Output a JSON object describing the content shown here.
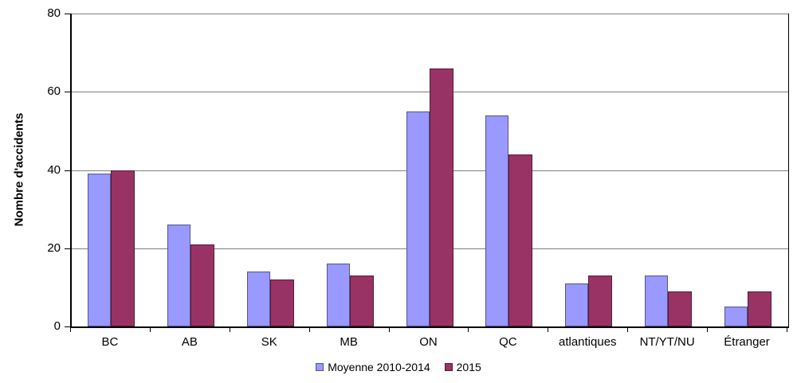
{
  "chart_data": {
    "type": "bar",
    "title": "",
    "xlabel": "",
    "ylabel": "Nombre d'accidents",
    "ylim": [
      0,
      80
    ],
    "yticks": [
      0,
      20,
      40,
      60,
      80
    ],
    "grid": true,
    "legend_position": "bottom",
    "categories": [
      "BC",
      "AB",
      "SK",
      "MB",
      "ON",
      "QC",
      "atlantiques",
      "NT/YT/NU",
      "Étranger"
    ],
    "series": [
      {
        "name": "Moyenne 2010-2014",
        "color": "#9999FF",
        "values": [
          39,
          26,
          14,
          16,
          55,
          54,
          11,
          13,
          5
        ]
      },
      {
        "name": "2015",
        "color": "#993366",
        "values": [
          40,
          21,
          12,
          13,
          66,
          44,
          13,
          9,
          9
        ]
      }
    ]
  },
  "colors": {
    "background": "#FFFFFF",
    "gridline": "#808080",
    "axis": "#000000",
    "series1": "#9999FF",
    "series2": "#993366"
  }
}
